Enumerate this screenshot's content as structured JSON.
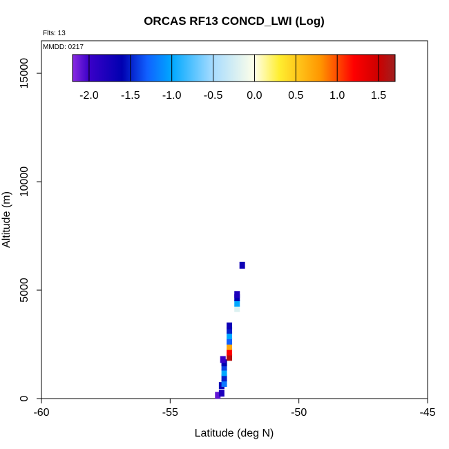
{
  "chart_data": {
    "type": "heatmap",
    "title": "ORCAS RF13 CONCD_LWI (Log)",
    "annotations": {
      "flights": "Flts: 13",
      "date": "MMDD: 0217"
    },
    "xlabel": "Latitude (deg N)",
    "ylabel": "Altitude (m)",
    "xlim": [
      -60,
      -45
    ],
    "ylim": [
      0,
      16500
    ],
    "xticks": [
      "-60",
      "-55",
      "-50",
      "-45"
    ],
    "xtick_values": [
      -60,
      -55,
      -50,
      -45
    ],
    "yticks": [
      "0",
      "5000",
      "10000",
      "15000"
    ],
    "ytick_values": [
      0,
      5000,
      10000,
      15000
    ],
    "colorbar": {
      "range": [
        -2.2,
        1.7
      ],
      "ticks": [
        "-2.0",
        "-1.5",
        "-1.0",
        "-0.5",
        "0.0",
        "0.5",
        "1.0",
        "1.5"
      ],
      "tick_values": [
        -2.0,
        -1.5,
        -1.0,
        -0.5,
        0.0,
        0.5,
        1.0,
        1.5
      ],
      "stops": [
        {
          "v": -2.2,
          "c": "#8a2be2"
        },
        {
          "v": -2.0,
          "c": "#3a00c8"
        },
        {
          "v": -1.6,
          "c": "#0000b0"
        },
        {
          "v": -1.3,
          "c": "#1060ff"
        },
        {
          "v": -1.0,
          "c": "#00a8ff"
        },
        {
          "v": -0.5,
          "c": "#a8dcff"
        },
        {
          "v": 0.0,
          "c": "#ffffe8"
        },
        {
          "v": 0.3,
          "c": "#ffee30"
        },
        {
          "v": 0.8,
          "c": "#ff9500"
        },
        {
          "v": 1.2,
          "c": "#ff0000"
        },
        {
          "v": 1.5,
          "c": "#cc0000"
        },
        {
          "v": 1.7,
          "c": "#a02020"
        }
      ]
    },
    "cells": [
      {
        "lat": -53.15,
        "alt": 150,
        "v": -2.1
      },
      {
        "lat": -53.0,
        "alt": 250,
        "v": -1.8
      },
      {
        "lat": -53.0,
        "alt": 600,
        "v": -1.7
      },
      {
        "lat": -52.9,
        "alt": 700,
        "v": -1.2
      },
      {
        "lat": -52.9,
        "alt": 950,
        "v": -1.5
      },
      {
        "lat": -52.9,
        "alt": 1200,
        "v": -1.0
      },
      {
        "lat": -52.9,
        "alt": 1450,
        "v": -1.4
      },
      {
        "lat": -52.9,
        "alt": 1650,
        "v": -1.6
      },
      {
        "lat": -52.95,
        "alt": 1800,
        "v": -2.0
      },
      {
        "lat": -52.7,
        "alt": 1900,
        "v": 1.6
      },
      {
        "lat": -52.7,
        "alt": 2150,
        "v": 1.2
      },
      {
        "lat": -52.7,
        "alt": 2400,
        "v": 0.7
      },
      {
        "lat": -52.7,
        "alt": 2650,
        "v": -1.3
      },
      {
        "lat": -52.7,
        "alt": 2900,
        "v": -1.0
      },
      {
        "lat": -52.7,
        "alt": 3150,
        "v": -1.5
      },
      {
        "lat": -52.7,
        "alt": 3350,
        "v": -1.7
      },
      {
        "lat": -52.4,
        "alt": 4150,
        "v": -0.2
      },
      {
        "lat": -52.4,
        "alt": 4400,
        "v": -1.0
      },
      {
        "lat": -52.4,
        "alt": 4650,
        "v": -1.6
      },
      {
        "lat": -52.4,
        "alt": 4800,
        "v": -1.8
      },
      {
        "lat": -52.2,
        "alt": 6150,
        "v": -1.7
      }
    ]
  }
}
